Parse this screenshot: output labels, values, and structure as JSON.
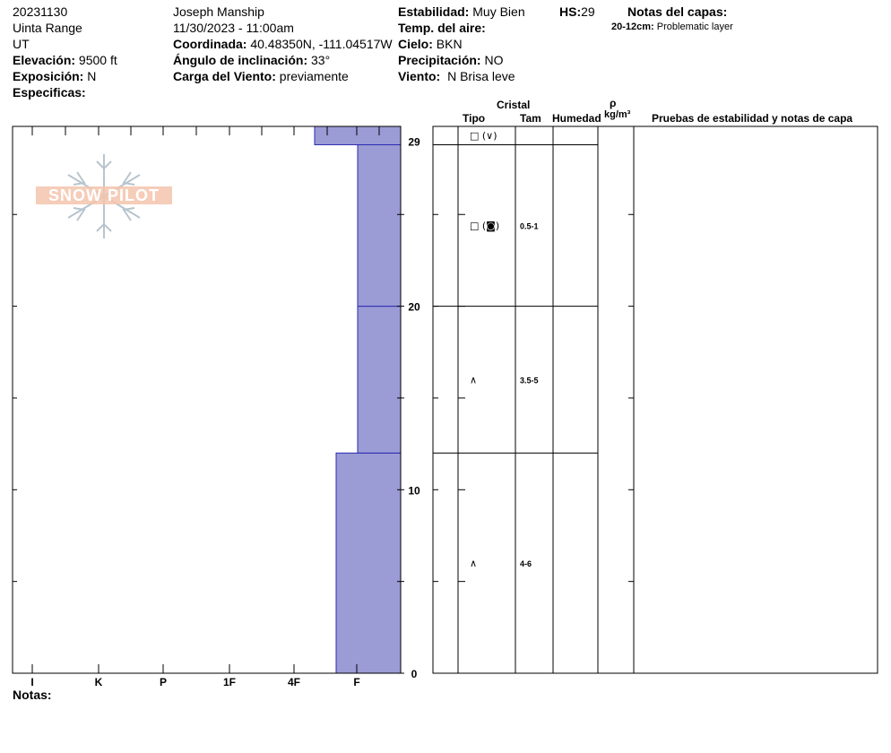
{
  "header": {
    "date": "20231130",
    "range": "Uinta Range",
    "state": "UT",
    "elevation_label": "Elevación:",
    "elevation_value": "9500 ft",
    "exposure_label": "Exposición:",
    "exposure_value": "N",
    "specifics_label": "Especificas:",
    "observer": "Joseph Manship",
    "datetime": "11/30/2023 - 11:00am",
    "coord_label": "Coordinada:",
    "coord_value": "40.48350N, -111.04517W",
    "slope_label": "Ángulo de inclinación:",
    "slope_value": "33°",
    "wind_load_label": "Carga del Viento:",
    "wind_load_value": "previamente",
    "stability_label": "Estabilidad:",
    "stability_value": "Muy Bien",
    "air_temp_label": "Temp. del aire:",
    "sky_label": "Cielo:",
    "sky_value": "BKN",
    "precip_label": "Precipitación:",
    "precip_value": "NO",
    "wind_label": "Viento:",
    "wind_value": "N Brisa leve",
    "hs_label": "HS:",
    "hs_value": "29",
    "layer_notes_title": "Notas del capas:",
    "layer_note_depth": "20-12cm:",
    "layer_note_text": "Problematic layer"
  },
  "logo": {
    "text": "SNOW PILOT"
  },
  "columns": {
    "cristal": "Cristal",
    "tipo": "Tipo",
    "tam": "Tam",
    "humedad": "Humedad",
    "rho": "ρ",
    "density_unit": "kg/m³",
    "tests": "Pruebas de estabilidad y notas de capa"
  },
  "notes_label": "Notas:",
  "chart_data": {
    "type": "bar",
    "title": "",
    "xlabel": "",
    "ylabel": "",
    "x_categories": [
      "I",
      "K",
      "P",
      "1F",
      "4F",
      "F"
    ],
    "y_ticks": [
      0,
      10,
      20,
      29
    ],
    "ylim": [
      0,
      29
    ],
    "hardness_layers": [
      {
        "bottom": 0,
        "top": 12,
        "hardness": "4F-F"
      },
      {
        "bottom": 12,
        "top": 20,
        "hardness": "F+"
      },
      {
        "bottom": 20,
        "top": 28.8,
        "hardness": "F+"
      },
      {
        "bottom": 28.8,
        "top": 29.8,
        "hardness": "4F+"
      }
    ],
    "grain_layers": [
      {
        "bottom": 28.8,
        "top": 29.8,
        "grain": "□ (∨)",
        "size": ""
      },
      {
        "bottom": 20,
        "top": 28.8,
        "grain": "□ (◙)",
        "size": "0.5-1"
      },
      {
        "bottom": 12,
        "top": 20,
        "grain": "∧",
        "size": "3.5-5"
      },
      {
        "bottom": 0,
        "top": 12,
        "grain": "∧",
        "size": "4-6"
      }
    ],
    "bar_color": "#9b9bd6",
    "grid": false
  }
}
